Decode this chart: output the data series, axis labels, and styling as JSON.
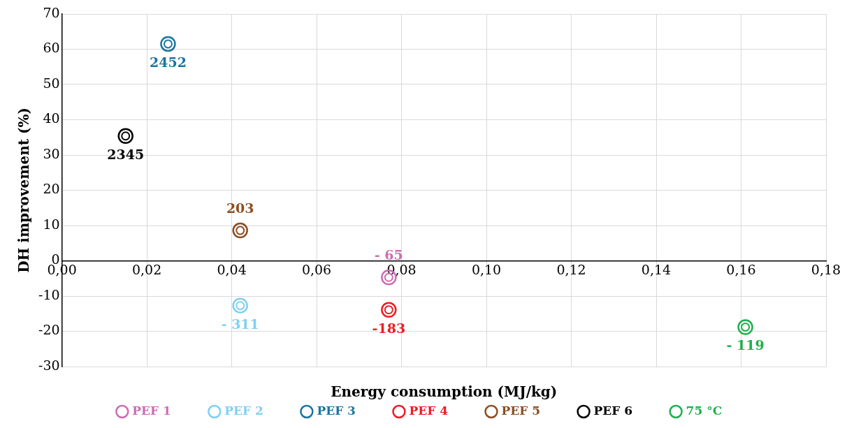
{
  "chart_data": {
    "type": "scatter",
    "xlabel": "Energy consumption (MJ/kg)",
    "ylabel": "DH improvement (%)",
    "xlim": [
      0,
      0.18
    ],
    "xticks": [
      {
        "value": 0,
        "label": "0,00"
      },
      {
        "value": 0.02,
        "label": "0,02"
      },
      {
        "value": 0.04,
        "label": "0,04"
      },
      {
        "value": 0.06,
        "label": "0,06"
      },
      {
        "value": 0.08,
        "label": "0,08"
      },
      {
        "value": 0.1,
        "label": "0,10"
      },
      {
        "value": 0.12,
        "label": "0,12"
      },
      {
        "value": 0.14,
        "label": "0,14"
      },
      {
        "value": 0.16,
        "label": "0,16"
      },
      {
        "value": 0.18,
        "label": "0,18"
      }
    ],
    "ylim": [
      -30,
      70
    ],
    "yticks": [
      -30,
      -20,
      -10,
      0,
      10,
      20,
      30,
      40,
      50,
      60,
      70
    ],
    "grid": true,
    "legend": "bottom",
    "marker": "circle",
    "series": [
      {
        "name": "PEF 1",
        "color": "#cc6db3",
        "x": [
          0.077
        ],
        "values": [
          -4.7
        ]
      },
      {
        "name": "PEF 2",
        "color": "#7fd0f2",
        "x": [
          0.042
        ],
        "values": [
          -12.7
        ]
      },
      {
        "name": "PEF 3",
        "color": "#1b75a0",
        "x": [
          0.025
        ],
        "values": [
          61.5
        ]
      },
      {
        "name": "PEF 4",
        "color": "#ee1c25",
        "x": [
          0.077
        ],
        "values": [
          -13.9
        ]
      },
      {
        "name": "PEF 5",
        "color": "#8b4f22",
        "x": [
          0.042
        ],
        "values": [
          8.6
        ]
      },
      {
        "name": "PEF 6",
        "color": "#000000",
        "x": [
          0.015
        ],
        "values": [
          35.4
        ]
      },
      {
        "name": "75 °C",
        "color": "#1db04b",
        "x": [
          0.161
        ],
        "values": [
          -18.8
        ]
      }
    ],
    "annotations": [
      {
        "text": "- 65",
        "x": 0.077,
        "y": -4.7
      },
      {
        "text": "- 311",
        "x": 0.042,
        "y": -12.7
      },
      {
        "text": "2452",
        "x": 0.025,
        "y": 61.5
      },
      {
        "text": "-183",
        "x": 0.077,
        "y": -13.9
      },
      {
        "text": "203",
        "x": 0.042,
        "y": 8.6
      },
      {
        "text": "2345",
        "x": 0.015,
        "y": 35.4
      },
      {
        "text": "- 119",
        "x": 0.161,
        "y": -18.8
      }
    ]
  }
}
